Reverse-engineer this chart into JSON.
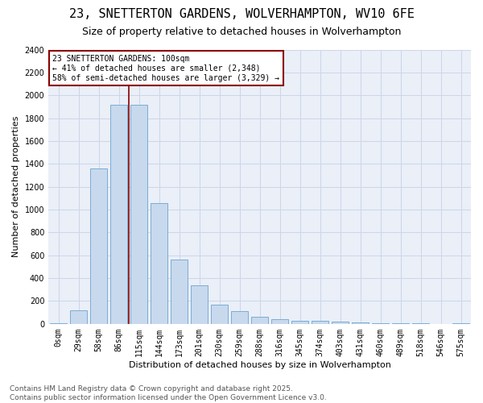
{
  "title": "23, SNETTERTON GARDENS, WOLVERHAMPTON, WV10 6FE",
  "subtitle": "Size of property relative to detached houses in Wolverhampton",
  "xlabel": "Distribution of detached houses by size in Wolverhampton",
  "ylabel": "Number of detached properties",
  "bar_color": "#c8d9ee",
  "bar_edge_color": "#7aadd4",
  "categories": [
    "0sqm",
    "29sqm",
    "58sqm",
    "86sqm",
    "115sqm",
    "144sqm",
    "173sqm",
    "201sqm",
    "230sqm",
    "259sqm",
    "288sqm",
    "316sqm",
    "345sqm",
    "374sqm",
    "403sqm",
    "431sqm",
    "460sqm",
    "489sqm",
    "518sqm",
    "546sqm",
    "575sqm"
  ],
  "values": [
    8,
    120,
    1360,
    1920,
    1920,
    1055,
    560,
    340,
    170,
    115,
    65,
    38,
    30,
    28,
    20,
    10,
    5,
    5,
    3,
    2,
    8
  ],
  "ylim": [
    0,
    2400
  ],
  "yticks": [
    0,
    200,
    400,
    600,
    800,
    1000,
    1200,
    1400,
    1600,
    1800,
    2000,
    2200,
    2400
  ],
  "vline_x_index": 3.5,
  "vline_color": "#8b0000",
  "annotation_text": "23 SNETTERTON GARDENS: 100sqm\n← 41% of detached houses are smaller (2,348)\n58% of semi-detached houses are larger (3,329) →",
  "annotation_box_color": "#8b0000",
  "grid_color": "#cdd6e8",
  "background_color": "#eaeff8",
  "footer_line1": "Contains HM Land Registry data © Crown copyright and database right 2025.",
  "footer_line2": "Contains public sector information licensed under the Open Government Licence v3.0.",
  "title_fontsize": 11,
  "subtitle_fontsize": 9,
  "axis_label_fontsize": 8,
  "tick_fontsize": 7,
  "footer_fontsize": 6.5,
  "annotation_fontsize": 7
}
